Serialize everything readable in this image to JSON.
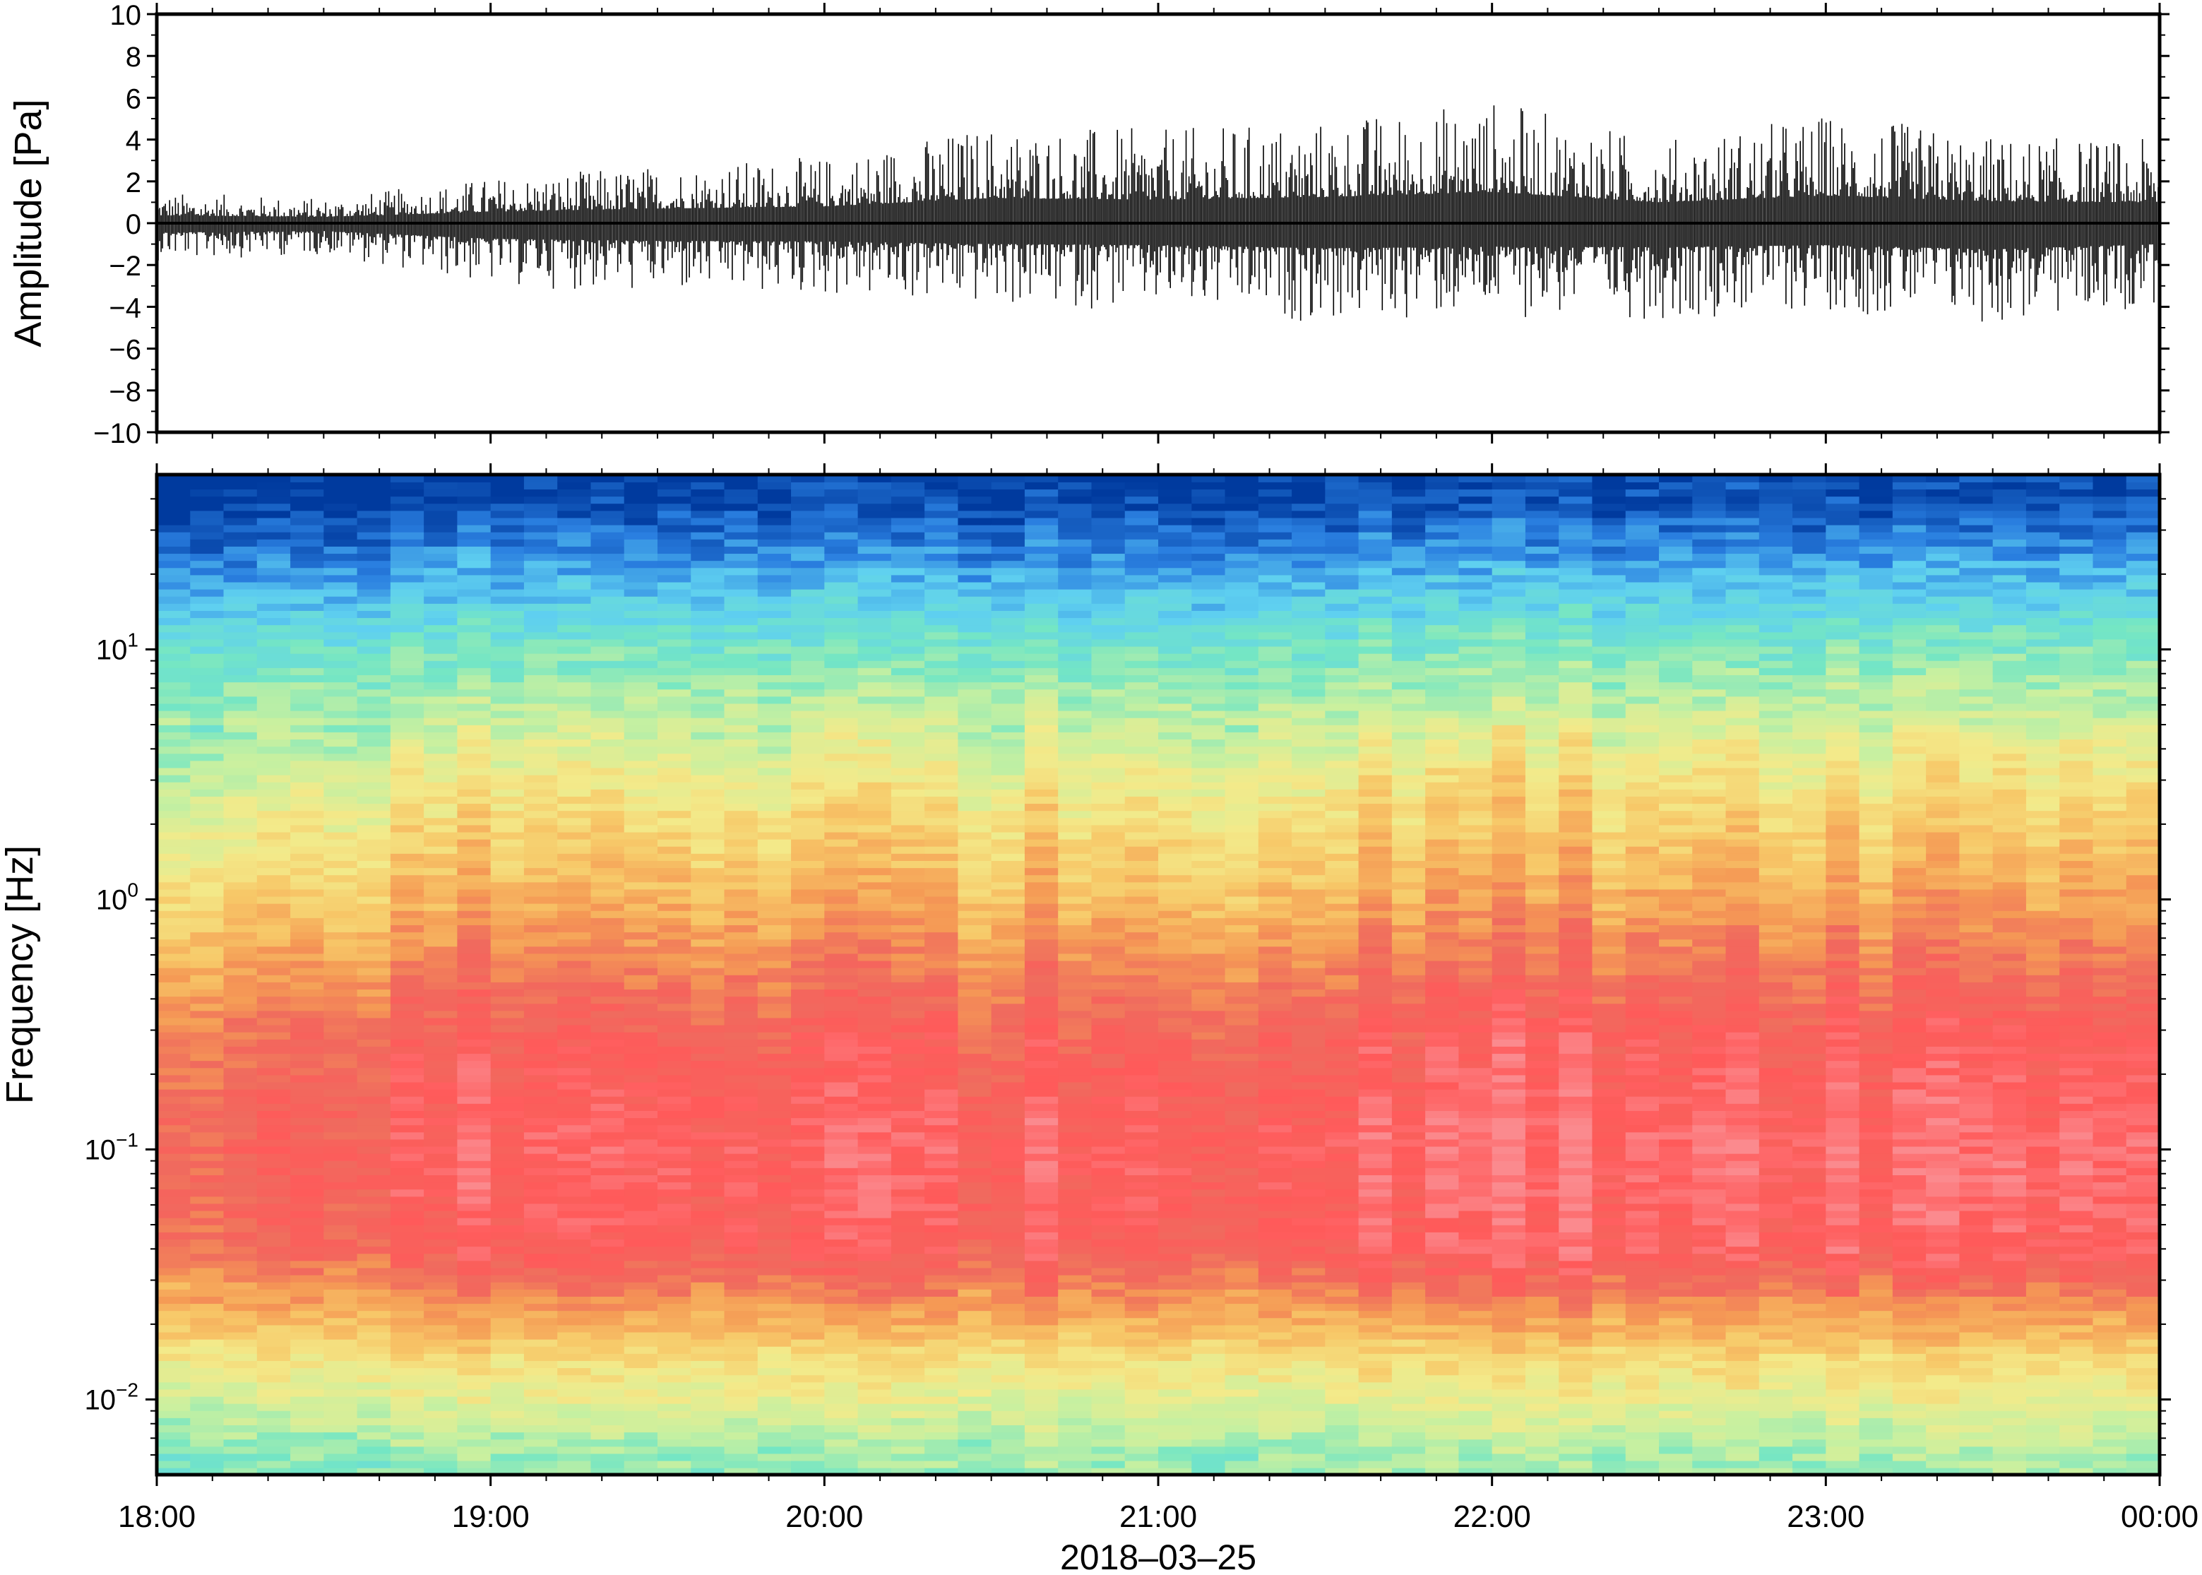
{
  "chart_data": [
    {
      "type": "line",
      "panel": "waveform",
      "ylabel": "Amplitude [Pa]",
      "ylim": [
        -10,
        10
      ],
      "y_ticks": [
        -10,
        -8,
        -6,
        -4,
        -2,
        0,
        2,
        4,
        6,
        8,
        10
      ],
      "x_range": [
        "18:00",
        "00:00"
      ],
      "grid": false,
      "envelope": {
        "description_of_series": "min/max amplitude per half hour",
        "time": [
          "18:00",
          "18:30",
          "19:00",
          "19:30",
          "20:00",
          "20:30",
          "21:00",
          "21:30",
          "22:00",
          "22:30",
          "23:00",
          "23:30",
          "00:00"
        ],
        "max": [
          1.5,
          1.2,
          2.2,
          2.8,
          3.2,
          4.8,
          4.5,
          5.0,
          6.0,
          4.0,
          5.3,
          4.2,
          4.0
        ],
        "min": [
          -1.8,
          -1.5,
          -3.0,
          -3.4,
          -3.5,
          -4.0,
          -4.2,
          -4.8,
          -4.5,
          -4.6,
          -4.2,
          -5.0,
          -4.0
        ]
      }
    },
    {
      "type": "heatmap",
      "panel": "spectrogram",
      "ylabel": "Frequency [Hz]",
      "xlabel": "2018–03–25",
      "y_scale": "log",
      "ylim": [
        0.005,
        50
      ],
      "y_ticks": [
        {
          "value": 0.01,
          "base": "10",
          "exp": "−2"
        },
        {
          "value": 0.1,
          "base": "10",
          "exp": "−1"
        },
        {
          "value": 1,
          "base": "10",
          "exp": "0"
        },
        {
          "value": 10,
          "base": "10",
          "exp": "1"
        }
      ],
      "x_ticks": [
        "18:00",
        "19:00",
        "20:00",
        "21:00",
        "22:00",
        "23:00",
        "00:00"
      ],
      "grid": false,
      "colormap": [
        "#003a9e",
        "#2a7fe0",
        "#5fd0f0",
        "#74e6c4",
        "#c8f0a0",
        "#f3ea8a",
        "#f7c868",
        "#f59a55",
        "#f06a5e",
        "#ff5a5a",
        "#fb8a8e"
      ],
      "columns": 60,
      "description_of_levels": "relative power level per time band (0 = low/blue, 1 = high/pink)",
      "bands": [
        {
          "freq_hz": 40,
          "level": 0.02
        },
        {
          "freq_hz": 10,
          "level": 0.3
        },
        {
          "freq_hz": 3,
          "level": 0.5
        },
        {
          "freq_hz": 1,
          "level": 0.65
        },
        {
          "freq_hz": 0.3,
          "level": 0.85
        },
        {
          "freq_hz": 0.1,
          "level": 0.92
        },
        {
          "freq_hz": 0.04,
          "level": 0.88
        },
        {
          "freq_hz": 0.015,
          "level": 0.55
        },
        {
          "freq_hz": 0.006,
          "level": 0.35
        }
      ]
    }
  ]
}
